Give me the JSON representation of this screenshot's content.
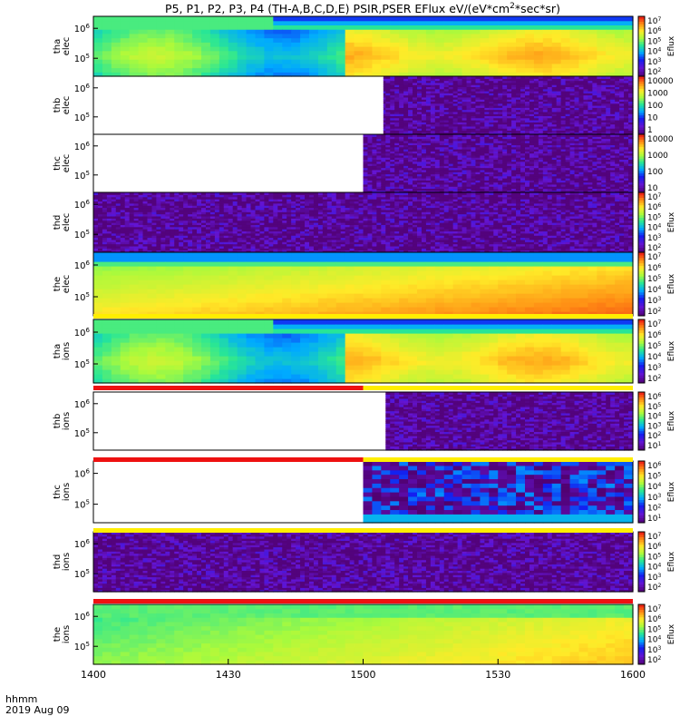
{
  "title": "P5, P1, P2, P3, P4 (TH-A,B,C,D,E) PSIR,PSER EFlux eV/(eV*cm",
  "title_sup": "2",
  "title_end": "*sec*sr)",
  "time_axis": {
    "ticks": [
      "1400",
      "1430",
      "1500",
      "1530",
      "1600"
    ],
    "tick_minutes": [
      0,
      30,
      60,
      90,
      120
    ],
    "unit_label": "hhmm",
    "date_label": "2019 Aug 09"
  },
  "chart_data": {
    "type": "heatmap",
    "x_range_minutes_since_1400": [
      0,
      120
    ],
    "y_scale": "log",
    "colorbar_label": "Eflux",
    "panels": [
      {
        "probe": "tha",
        "species": "elec",
        "y_ticks": [
          "10^6",
          "10^5"
        ],
        "y_tick_exps": [
          6,
          5
        ],
        "y_range_exp": [
          4.4,
          6.4
        ],
        "colorbar_ticks": [
          "10^7",
          "10^6",
          "10^5",
          "10^4",
          "10^3",
          "10^2"
        ],
        "colorbar_range_exp": [
          1.8,
          7.4
        ],
        "colorbar_label": "Eflux",
        "pattern": "a",
        "data_start_minutes": 0
      },
      {
        "probe": "thb",
        "species": "elec",
        "y_ticks": [
          "10^6",
          "10^5"
        ],
        "y_tick_exps": [
          6,
          5
        ],
        "y_range_exp": [
          4.4,
          6.4
        ],
        "colorbar_ticks": [
          "10000",
          "1000",
          "100",
          "10",
          "1"
        ],
        "colorbar_range_exp": [
          -0.3,
          4.3
        ],
        "colorbar_label": "",
        "pattern": "noise",
        "data_start_minutes": 64.5
      },
      {
        "probe": "thc",
        "species": "elec",
        "y_ticks": [
          "10^6",
          "10^5"
        ],
        "y_tick_exps": [
          6,
          5
        ],
        "y_range_exp": [
          4.4,
          6.4
        ],
        "colorbar_ticks": [
          "10000",
          "1000",
          "100",
          "10"
        ],
        "colorbar_range_exp": [
          0.6,
          4.6
        ],
        "colorbar_label": "",
        "pattern": "noise",
        "data_start_minutes": 60
      },
      {
        "probe": "thd",
        "species": "elec",
        "y_ticks": [
          "10^6",
          "10^5"
        ],
        "y_tick_exps": [
          6,
          5
        ],
        "y_range_exp": [
          4.4,
          6.4
        ],
        "colorbar_ticks": [
          "10^7",
          "10^6",
          "10^5",
          "10^4",
          "10^3",
          "10^2"
        ],
        "colorbar_range_exp": [
          1.8,
          7.4
        ],
        "colorbar_label": "Eflux",
        "pattern": "noise",
        "data_start_minutes": 0
      },
      {
        "probe": "the",
        "species": "elec",
        "y_ticks": [
          "10^6",
          "10^5"
        ],
        "y_tick_exps": [
          6,
          5
        ],
        "y_range_exp": [
          4.4,
          6.4
        ],
        "colorbar_ticks": [
          "10^7",
          "10^6",
          "10^5",
          "10^4",
          "10^3",
          "10^2"
        ],
        "colorbar_range_exp": [
          1.8,
          7.4
        ],
        "colorbar_label": "Eflux",
        "pattern": "e",
        "data_start_minutes": 0
      },
      {
        "probe": "tha",
        "species": "ions",
        "y_ticks": [
          "10^6",
          "10^5"
        ],
        "y_tick_exps": [
          6,
          5
        ],
        "y_range_exp": [
          4.4,
          6.4
        ],
        "colorbar_ticks": [
          "10^7",
          "10^6",
          "10^5",
          "10^4",
          "10^3",
          "10^2"
        ],
        "colorbar_range_exp": [
          1.8,
          7.4
        ],
        "colorbar_label": "Eflux",
        "pattern": "a",
        "data_start_minutes": 0
      },
      {
        "probe": "thb",
        "species": "ions",
        "y_ticks": [
          "10^6",
          "10^5"
        ],
        "y_tick_exps": [
          6,
          5
        ],
        "y_range_exp": [
          4.4,
          6.4
        ],
        "colorbar_ticks": [
          "10^6",
          "10^5",
          "10^4",
          "10^3",
          "10^2",
          "10^1"
        ],
        "colorbar_range_exp": [
          0.7,
          6.3
        ],
        "colorbar_label": "Eflux",
        "pattern": "noise",
        "data_start_minutes": 65
      },
      {
        "probe": "thc",
        "species": "ions",
        "y_ticks": [
          "10^6",
          "10^5"
        ],
        "y_tick_exps": [
          6,
          5
        ],
        "y_range_exp": [
          4.4,
          6.4
        ],
        "colorbar_ticks": [
          "10^6",
          "10^5",
          "10^4",
          "10^3",
          "10^2",
          "10^1"
        ],
        "colorbar_range_exp": [
          0.7,
          6.3
        ],
        "colorbar_label": "Eflux",
        "pattern": "c_ions",
        "data_start_minutes": 60
      },
      {
        "probe": "thd",
        "species": "ions",
        "y_ticks": [
          "10^6",
          "10^5"
        ],
        "y_tick_exps": [
          6,
          5
        ],
        "y_range_exp": [
          4.4,
          6.4
        ],
        "colorbar_ticks": [
          "10^7",
          "10^6",
          "10^5",
          "10^4",
          "10^3",
          "10^2"
        ],
        "colorbar_range_exp": [
          1.8,
          7.4
        ],
        "colorbar_label": "Eflux",
        "pattern": "noise",
        "data_start_minutes": 0
      },
      {
        "probe": "the",
        "species": "ions",
        "y_ticks": [
          "10^6",
          "10^5"
        ],
        "y_tick_exps": [
          6,
          5
        ],
        "y_range_exp": [
          4.4,
          6.4
        ],
        "colorbar_ticks": [
          "10^7",
          "10^6",
          "10^5",
          "10^4",
          "10^3",
          "10^2"
        ],
        "colorbar_range_exp": [
          1.8,
          7.4
        ],
        "colorbar_label": "Eflux",
        "pattern": "e_ions",
        "data_start_minutes": 0
      }
    ]
  },
  "colors": {
    "status_red": "#ee1111",
    "status_yellow": "#ffee00"
  }
}
